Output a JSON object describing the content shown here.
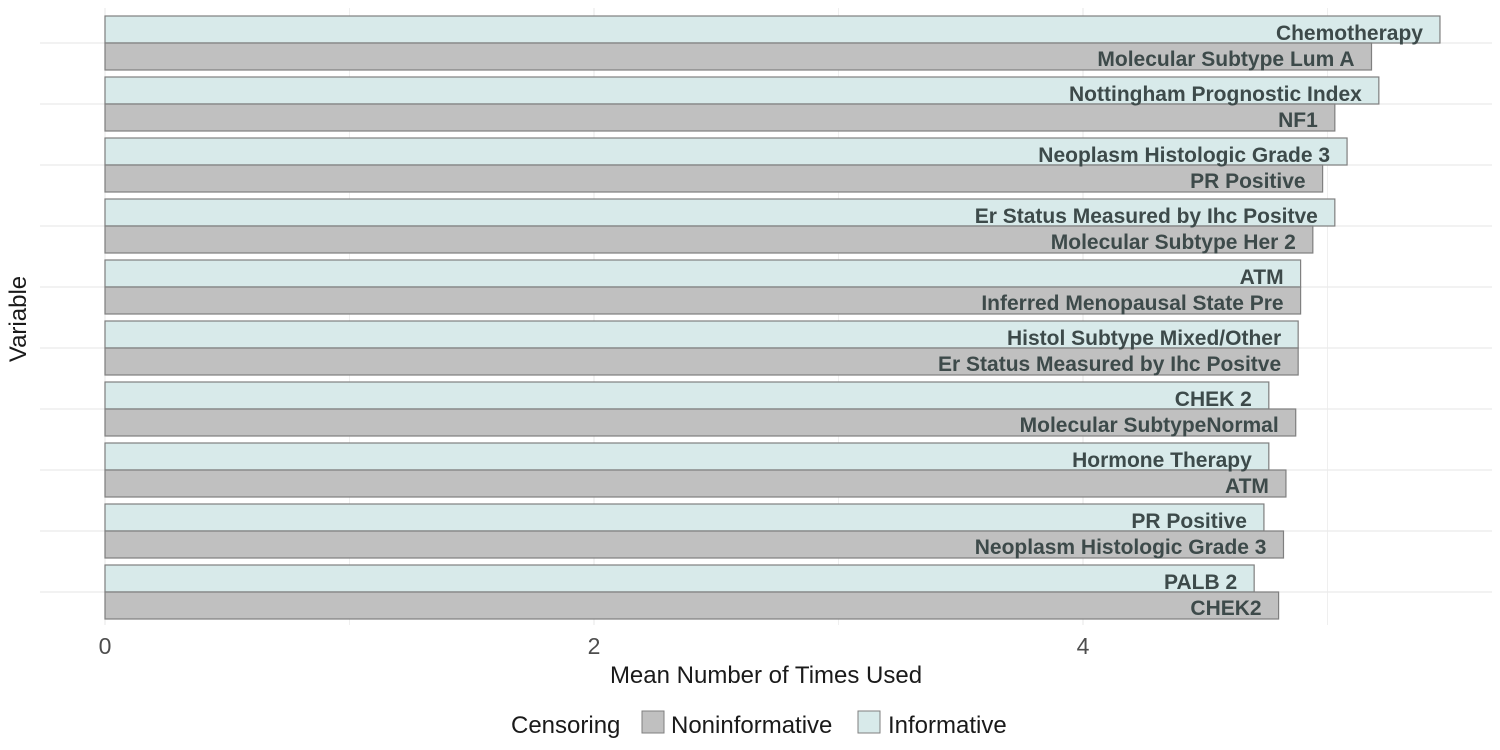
{
  "chart_data": {
    "type": "bar",
    "orientation": "horizontal",
    "xlabel": "Mean Number of Times Used",
    "ylabel": "Variable",
    "xlim": [
      0,
      5.58
    ],
    "xticks": [
      0,
      2,
      4
    ],
    "xtick_labels": [
      "0",
      "2",
      "4"
    ],
    "grid": true,
    "legend": {
      "title": "Censoring",
      "placement": "bottom",
      "entries": [
        {
          "name": "Noninformative",
          "color": "#c0c0c0"
        },
        {
          "name": "Informative",
          "color": "#d8eaea"
        }
      ]
    },
    "series": [
      {
        "name": "Informative",
        "color": "#d8eaea",
        "labels": [
          "Chemotherapy",
          "Nottingham Prognostic Index",
          "Neoplasm Histologic Grade 3",
          "Er Status Measured by Ihc Positve",
          "ATM",
          "Histol Subtype Mixed/Other",
          "CHEK 2",
          "Hormone Therapy",
          "PR Positive",
          "PALB 2"
        ],
        "values": [
          5.46,
          5.21,
          5.08,
          5.03,
          4.89,
          4.88,
          4.76,
          4.76,
          4.74,
          4.7
        ]
      },
      {
        "name": "Noninformative",
        "color": "#c0c0c0",
        "labels": [
          "Molecular Subtype Lum A",
          "NF1",
          "PR Positive",
          "Molecular Subtype Her 2",
          "Inferred Menopausal State Pre",
          "Er Status Measured by Ihc Positve",
          "Molecular SubtypeNormal",
          "ATM",
          "Neoplasm Histologic Grade 3",
          "CHEK2"
        ],
        "values": [
          5.18,
          5.03,
          4.98,
          4.94,
          4.89,
          4.88,
          4.87,
          4.83,
          4.82,
          4.8
        ]
      }
    ]
  },
  "colors": {
    "grid": "#ebebeb",
    "bar_stroke": "#7f7f7f",
    "label_text": "#3d4a4a"
  }
}
